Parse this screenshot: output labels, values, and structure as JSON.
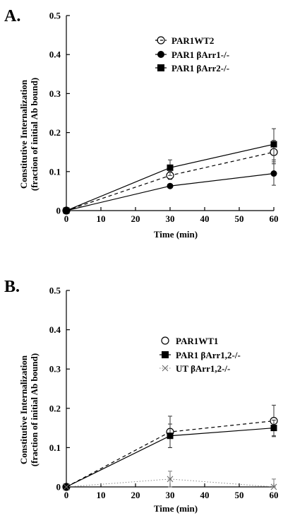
{
  "chart_data": [
    {
      "panel_label": "A.",
      "type": "line",
      "xlabel": "Time (min)",
      "ylabel": "Constitutive Internalization",
      "ylabel2": "(fraction of initial Ab bound)",
      "xlim": [
        0,
        60
      ],
      "ylim": [
        0,
        0.5
      ],
      "xticks": [
        0,
        10,
        20,
        30,
        40,
        50,
        60
      ],
      "yticks": [
        0,
        0.1,
        0.2,
        0.3,
        0.4,
        0.5
      ],
      "xtick_labels": [
        "0",
        "10",
        "20",
        "30",
        "40",
        "50",
        "60"
      ],
      "ytick_labels": [
        "0",
        "0.1",
        "0.2",
        "0.3",
        "0.4",
        "0.5"
      ],
      "legend_position": "upper-right",
      "grid": false,
      "series": [
        {
          "name": "PAR1WT2",
          "marker": "open-circle",
          "line": "dashed",
          "color": "#000000",
          "x": [
            0,
            30,
            60
          ],
          "y": [
            0,
            0.09,
            0.15
          ],
          "err": [
            0,
            0.01,
            0.03
          ]
        },
        {
          "name": "PAR1 βArr1-/-",
          "marker": "filled-circle",
          "line": "solid",
          "color": "#000000",
          "x": [
            0,
            30,
            60
          ],
          "y": [
            0,
            0.063,
            0.095
          ],
          "err": [
            0,
            0,
            0.03
          ]
        },
        {
          "name": "PAR1 βArr2-/-",
          "marker": "filled-square",
          "line": "solid",
          "color": "#000000",
          "x": [
            0,
            30,
            60
          ],
          "y": [
            0,
            0.11,
            0.17
          ],
          "err": [
            0,
            0.02,
            0.04
          ]
        }
      ]
    },
    {
      "panel_label": "B.",
      "type": "line",
      "xlabel": "Time (min)",
      "ylabel": "Constitutive Internalization",
      "ylabel2": "(fraction of initial Ab bound)",
      "xlim": [
        0,
        60
      ],
      "ylim": [
        0,
        0.5
      ],
      "xticks": [
        0,
        10,
        20,
        30,
        40,
        50,
        60
      ],
      "yticks": [
        0,
        0.1,
        0.2,
        0.3,
        0.4,
        0.5
      ],
      "xtick_labels": [
        "0",
        "10",
        "20",
        "30",
        "40",
        "50",
        "60"
      ],
      "ytick_labels": [
        "0",
        "0.1",
        "0.2",
        "0.3",
        "0.4",
        "0.5"
      ],
      "legend_position": "upper-right",
      "grid": false,
      "series": [
        {
          "name": "PAR1WT1",
          "marker": "open-circle",
          "line": "dashed",
          "color": "#000000",
          "x": [
            0,
            30,
            60
          ],
          "y": [
            0,
            0.14,
            0.168
          ],
          "err": [
            0,
            0.04,
            0.04
          ]
        },
        {
          "name": "PAR1 βArr1,2-/-",
          "marker": "filled-square",
          "line": "solid",
          "color": "#000000",
          "x": [
            0,
            30,
            60
          ],
          "y": [
            0,
            0.13,
            0.15
          ],
          "err": [
            0,
            0.03,
            0.02
          ]
        },
        {
          "name": "UT βArr1,2-/-",
          "marker": "x",
          "line": "dotted",
          "color": "#888888",
          "x": [
            0,
            30,
            60
          ],
          "y": [
            0,
            0.02,
            0
          ],
          "err": [
            0,
            0.02,
            0.02
          ]
        }
      ]
    }
  ]
}
